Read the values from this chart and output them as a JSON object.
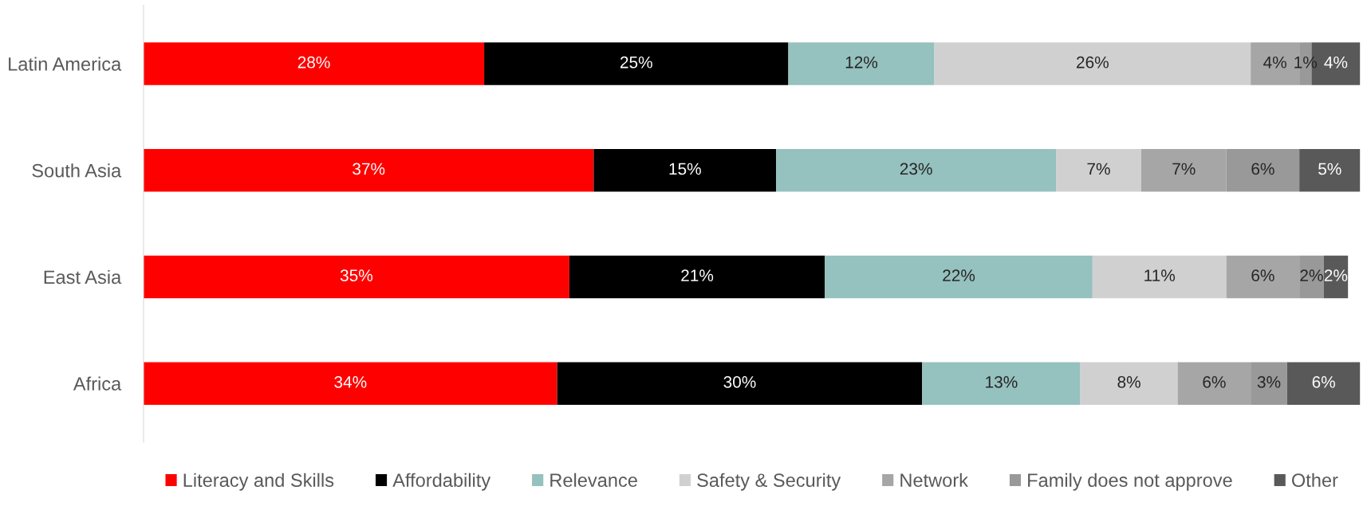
{
  "chart_data": {
    "type": "bar",
    "orientation": "horizontal",
    "stacked": true,
    "grid": false,
    "legend": "bottom",
    "categories": [
      "Latin America",
      "South Asia",
      "East Asia",
      "Africa"
    ],
    "series": [
      {
        "name": "Literacy and Skills",
        "color": "#ff0000",
        "values": [
          28,
          37,
          35,
          34
        ],
        "value_labels": [
          "28%",
          "37%",
          "35%",
          "34%"
        ]
      },
      {
        "name": "Affordability",
        "color": "#000000",
        "values": [
          25,
          15,
          21,
          30
        ],
        "value_labels": [
          "25%",
          "15%",
          "21%",
          "30%"
        ]
      },
      {
        "name": "Relevance",
        "color": "#95c1be",
        "values": [
          12,
          23,
          22,
          13
        ],
        "value_labels": [
          "12%",
          "23%",
          "22%",
          "13%"
        ]
      },
      {
        "name": "Safety & Security",
        "color": "#d0d0d0",
        "values": [
          26,
          7,
          11,
          8
        ],
        "value_labels": [
          "26%",
          "7%",
          "11%",
          "8%"
        ]
      },
      {
        "name": "Network",
        "color": "#a6a6a6",
        "values": [
          4,
          7,
          6,
          6
        ],
        "value_labels": [
          "4%",
          "7%",
          "6%",
          "6%"
        ]
      },
      {
        "name": "Family does not approve",
        "color": "#999999",
        "values": [
          1,
          6,
          2,
          3
        ],
        "value_labels": [
          "1%",
          "6%",
          "2%",
          "3%"
        ]
      },
      {
        "name": "Other",
        "color": "#595959",
        "values": [
          4,
          5,
          2,
          6
        ],
        "value_labels": [
          "4%",
          "5%",
          "2%",
          "6%"
        ]
      }
    ]
  }
}
